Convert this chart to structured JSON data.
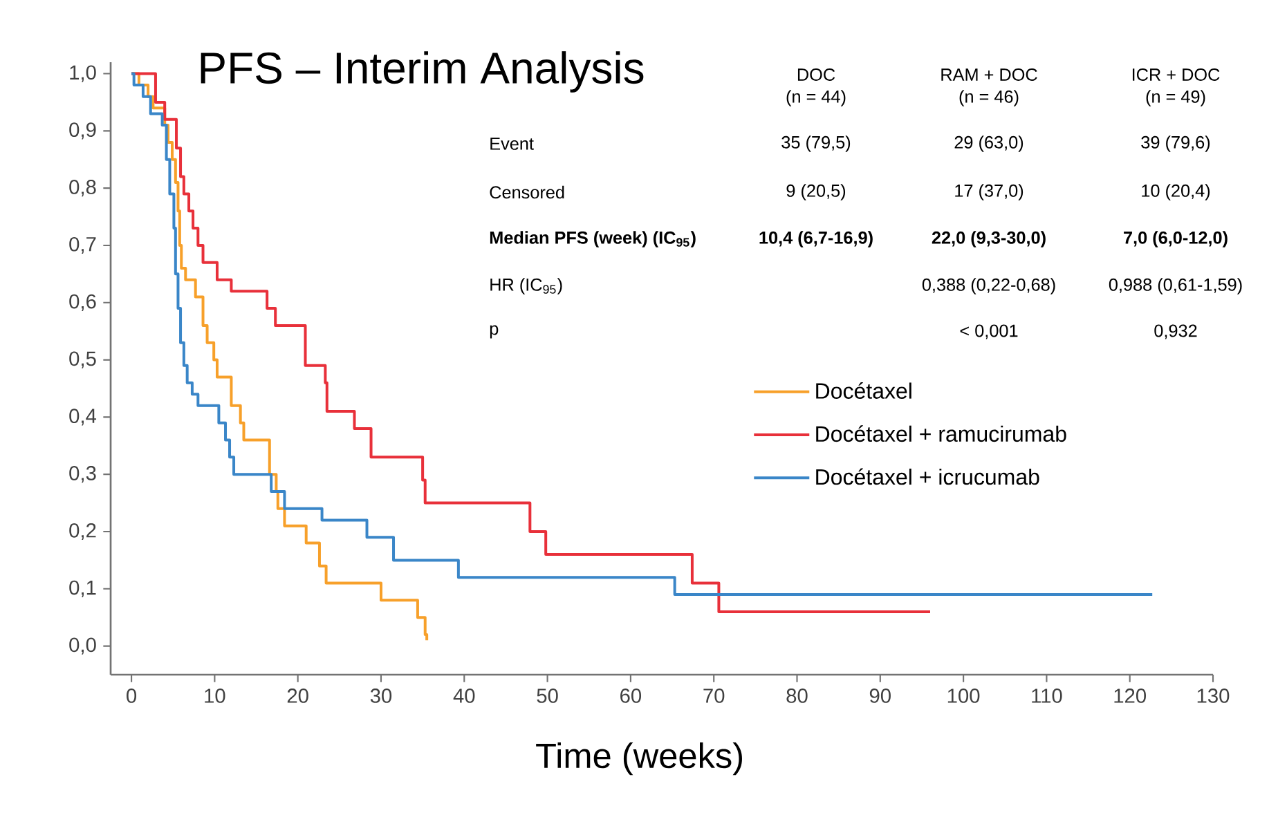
{
  "chart_data": {
    "type": "step",
    "title": "PFS – Interim Analysis",
    "xlabel": "Time (weeks)",
    "xlim": [
      -2.5,
      130
    ],
    "xticks": [
      0,
      10,
      20,
      30,
      40,
      50,
      60,
      70,
      80,
      90,
      100,
      110,
      120,
      130
    ],
    "ylim": [
      -0.05,
      1.02
    ],
    "yticks": [
      {
        "value": 0,
        "label": "0,0"
      },
      {
        "value": 0.1,
        "label": "0,1"
      },
      {
        "value": 0.2,
        "label": "0,2"
      },
      {
        "value": 0.3,
        "label": "0,3"
      },
      {
        "value": 0.4,
        "label": "0,4"
      },
      {
        "value": 0.5,
        "label": "0,5"
      },
      {
        "value": 0.6,
        "label": "0,6"
      },
      {
        "value": 0.7,
        "label": "0,7"
      },
      {
        "value": 0.8,
        "label": "0,8"
      },
      {
        "value": 0.9,
        "label": "0,9"
      },
      {
        "value": 1,
        "label": "1,0"
      }
    ],
    "legend": "right",
    "series": [
      {
        "name": "Docétaxel",
        "color": "#f7a02a",
        "x": [
          0,
          0.9,
          2,
          2.6,
          4,
          4.4,
          4.9,
          5.3,
          5.6,
          5.8,
          6.0,
          6.5,
          7.7,
          8.6,
          9.1,
          9.9,
          10.3,
          12,
          13.1,
          13.5,
          16.6,
          17.4,
          17.6,
          18.4,
          21,
          22.6,
          23.4,
          30,
          34.4,
          35.3,
          35.5
        ],
        "values": [
          1,
          0.98,
          0.96,
          0.94,
          0.91,
          0.88,
          0.85,
          0.81,
          0.76,
          0.7,
          0.66,
          0.64,
          0.61,
          0.56,
          0.53,
          0.5,
          0.47,
          0.42,
          0.39,
          0.36,
          0.3,
          0.27,
          0.24,
          0.21,
          0.18,
          0.14,
          0.11,
          0.08,
          0.05,
          0.02,
          0.01
        ]
      },
      {
        "name": "Docétaxel + ramucirumab",
        "color": "#e8303a",
        "x": [
          0,
          2.9,
          4,
          5.4,
          5.9,
          6.3,
          6.9,
          7.4,
          8,
          8.6,
          10.3,
          12,
          16.3,
          17.3,
          20.9,
          23.3,
          23.5,
          26.8,
          28.8,
          35,
          35.3,
          47.9,
          49.8,
          67.4,
          70.6,
          96
        ],
        "values": [
          1,
          0.95,
          0.92,
          0.87,
          0.82,
          0.79,
          0.76,
          0.73,
          0.7,
          0.67,
          0.64,
          0.62,
          0.59,
          0.56,
          0.49,
          0.46,
          0.41,
          0.38,
          0.33,
          0.29,
          0.25,
          0.2,
          0.16,
          0.11,
          0.06,
          0.06
        ]
      },
      {
        "name": "Docétaxel + icrucumab",
        "color": "#3a86c8",
        "x": [
          0,
          0.3,
          1.4,
          2.3,
          3.7,
          4.2,
          4.6,
          5.1,
          5.3,
          5.6,
          5.9,
          6.3,
          6.7,
          7.3,
          8,
          10.5,
          11.3,
          11.8,
          12.3,
          16.8,
          18.4,
          22.9,
          28.3,
          31.5,
          39.3,
          65.3,
          122.7
        ],
        "values": [
          1,
          0.98,
          0.96,
          0.93,
          0.91,
          0.85,
          0.79,
          0.73,
          0.65,
          0.59,
          0.53,
          0.49,
          0.46,
          0.44,
          0.42,
          0.39,
          0.36,
          0.33,
          0.3,
          0.27,
          0.24,
          0.22,
          0.19,
          0.15,
          0.12,
          0.09,
          0.09
        ]
      }
    ],
    "annotations": [
      "DOC",
      "(n = 44)",
      "RAM + DOC",
      "(n = 46)",
      "ICR + DOC",
      "(n = 49)",
      "Event",
      "35 (79,5)",
      "29 (63,0)",
      "39 (79,6)",
      "Censored",
      "9 (20,5)",
      "17 (37,0)",
      "10 (20,4)",
      "Median PFS (week) (IC$_{95}$)",
      "10,4 (6,7-16,9)",
      "22,0 (9,3-30,0)",
      "7,0 (6,0-12,0)",
      "HR (IC$_{95}$)",
      "0,388 (0,22-0,68)",
      "0,988 (0,61-1,59)",
      "p",
      "< 0,001",
      "0,932"
    ]
  }
}
